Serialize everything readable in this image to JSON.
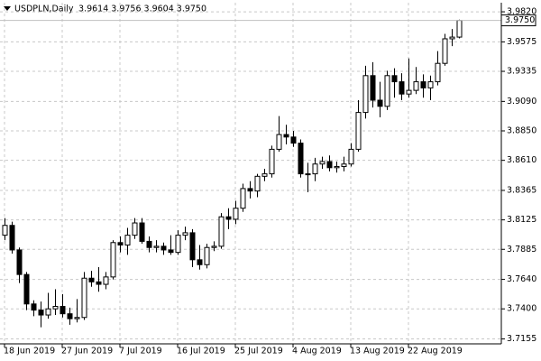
{
  "header": {
    "symbol": "USDPLN,Daily",
    "ohlc": "3.9614 3.9756 3.9604 3.9750"
  },
  "chart_data": {
    "type": "candlestick",
    "categories": [
      "18 Jun 2019",
      null,
      null,
      null,
      null,
      null,
      null,
      null,
      "27 Jun 2019",
      null,
      null,
      null,
      null,
      null,
      null,
      null,
      "7 Jul 2019",
      null,
      null,
      null,
      null,
      null,
      null,
      null,
      "16 Jul 2019",
      null,
      null,
      null,
      null,
      null,
      null,
      null,
      "25 Jul 2019",
      null,
      null,
      null,
      null,
      null,
      null,
      null,
      "4 Aug 2019",
      null,
      null,
      null,
      null,
      null,
      null,
      null,
      "13 Aug 2019",
      null,
      null,
      null,
      null,
      null,
      null,
      null,
      "22 Aug 2019",
      null,
      null,
      null,
      null,
      null,
      null,
      null
    ],
    "open": [
      3.8,
      3.808,
      3.788,
      3.768,
      3.744,
      3.739,
      3.735,
      3.74,
      3.742,
      3.736,
      3.732,
      3.733,
      3.765,
      3.762,
      3.76,
      3.766,
      3.794,
      3.792,
      3.8,
      3.81,
      3.795,
      3.79,
      3.791,
      3.788,
      3.786,
      3.8,
      3.802,
      3.78,
      3.776,
      3.79,
      3.791,
      3.815,
      3.813,
      3.822,
      3.838,
      3.836,
      3.848,
      3.85,
      3.87,
      3.882,
      3.88,
      3.875,
      3.85,
      3.85,
      3.858,
      3.86,
      3.855,
      3.856,
      3.858,
      3.87,
      3.9,
      3.93,
      3.91,
      3.905,
      3.93,
      3.925,
      3.915,
      3.918,
      3.925,
      3.92,
      3.925,
      3.94,
      3.96,
      3.9614
    ],
    "high": [
      3.814,
      3.811,
      3.79,
      3.77,
      3.747,
      3.746,
      3.753,
      3.756,
      3.752,
      3.741,
      3.748,
      3.77,
      3.771,
      3.774,
      3.77,
      3.796,
      3.799,
      3.806,
      3.814,
      3.814,
      3.799,
      3.796,
      3.794,
      3.8,
      3.804,
      3.807,
      3.805,
      3.792,
      3.793,
      3.795,
      3.818,
      3.822,
      3.828,
      3.842,
      3.844,
      3.85,
      3.854,
      3.873,
      3.897,
      3.89,
      3.885,
      3.878,
      3.859,
      3.863,
      3.864,
      3.865,
      3.86,
      3.864,
      3.875,
      3.91,
      3.938,
      3.941,
      3.925,
      3.934,
      3.936,
      3.932,
      3.944,
      3.937,
      3.931,
      3.93,
      3.95,
      3.964,
      3.968,
      3.9756
    ],
    "low": [
      3.796,
      3.785,
      3.761,
      3.739,
      3.734,
      3.725,
      3.732,
      3.735,
      3.733,
      3.727,
      3.729,
      3.731,
      3.758,
      3.754,
      3.756,
      3.764,
      3.786,
      3.784,
      3.797,
      3.793,
      3.786,
      3.786,
      3.784,
      3.784,
      3.784,
      3.796,
      3.774,
      3.772,
      3.773,
      3.787,
      3.789,
      3.805,
      3.809,
      3.819,
      3.83,
      3.831,
      3.844,
      3.847,
      3.868,
      3.874,
      3.872,
      3.847,
      3.835,
      3.844,
      3.854,
      3.852,
      3.851,
      3.852,
      3.856,
      3.868,
      3.895,
      3.904,
      3.896,
      3.902,
      3.912,
      3.91,
      3.912,
      3.915,
      3.912,
      3.91,
      3.922,
      3.938,
      3.954,
      3.9604
    ],
    "close": [
      3.808,
      3.788,
      3.768,
      3.744,
      3.739,
      3.735,
      3.74,
      3.742,
      3.736,
      3.732,
      3.733,
      3.765,
      3.762,
      3.76,
      3.766,
      3.794,
      3.792,
      3.8,
      3.81,
      3.795,
      3.79,
      3.791,
      3.788,
      3.786,
      3.8,
      3.802,
      3.78,
      3.776,
      3.79,
      3.791,
      3.815,
      3.813,
      3.822,
      3.838,
      3.836,
      3.848,
      3.85,
      3.87,
      3.882,
      3.88,
      3.875,
      3.85,
      3.85,
      3.858,
      3.86,
      3.855,
      3.856,
      3.858,
      3.87,
      3.9,
      3.93,
      3.91,
      3.905,
      3.93,
      3.925,
      3.915,
      3.918,
      3.925,
      3.92,
      3.925,
      3.94,
      3.96,
      3.9614,
      3.975
    ],
    "ylim": [
      3.7115,
      3.9894
    ],
    "yticks": [
      {
        "value": 3.7155,
        "label": "3.7155"
      },
      {
        "value": 3.74,
        "label": "3.7400"
      },
      {
        "value": 3.764,
        "label": "3.7640"
      },
      {
        "value": 3.7885,
        "label": "3.7885"
      },
      {
        "value": 3.8125,
        "label": "3.8125"
      },
      {
        "value": 3.8365,
        "label": "3.8365"
      },
      {
        "value": 3.861,
        "label": "3.8610"
      },
      {
        "value": 3.885,
        "label": "3.8850"
      },
      {
        "value": 3.909,
        "label": "3.9090"
      },
      {
        "value": 3.9335,
        "label": "3.9335"
      },
      {
        "value": 3.9575,
        "label": "3.9575"
      },
      {
        "value": 3.982,
        "label": "3.9820"
      }
    ],
    "last_price": {
      "value": 3.975,
      "label": "3.9750"
    },
    "grid": true,
    "up_color": "#ffffff",
    "down_color": "#000000",
    "outline_color": "#000000"
  }
}
